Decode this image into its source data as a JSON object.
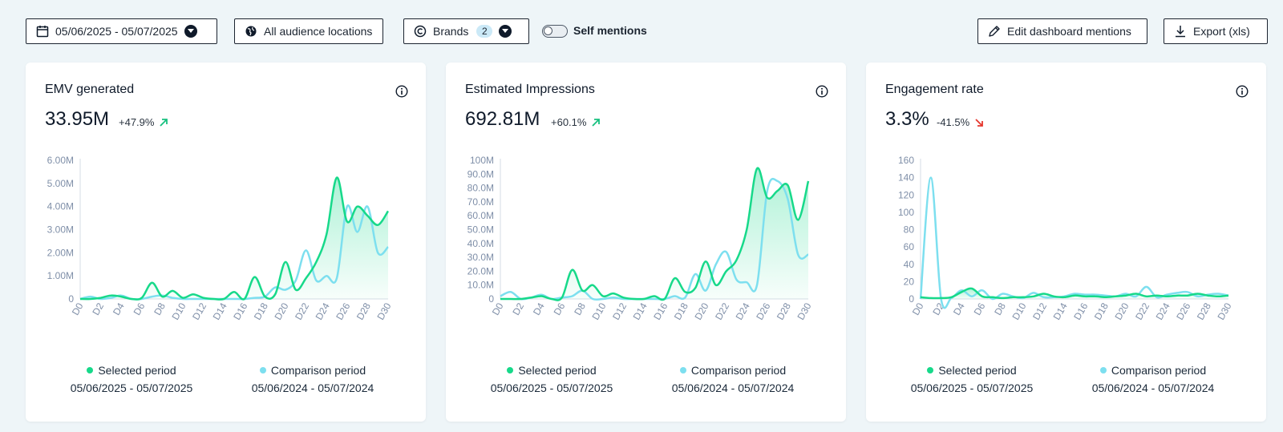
{
  "toolbar": {
    "date_range": "05/06/2025 - 05/07/2025",
    "locations": "All audience locations",
    "brands_label": "Brands",
    "brands_count": "2",
    "self_mentions": "Self mentions",
    "edit_mentions": "Edit dashboard mentions",
    "export": "Export (xls)"
  },
  "colors": {
    "selected": "#17d98a",
    "comparison": "#7ddfef",
    "up": "#17c07f",
    "down": "#e5372e"
  },
  "legend": {
    "selected_label": "Selected period",
    "selected_dates": "05/06/2025 - 05/07/2025",
    "comparison_label": "Comparison period",
    "comparison_dates": "05/06/2024 - 05/07/2024"
  },
  "cards": [
    {
      "title": "EMV generated",
      "value": "33.95M",
      "delta": "+47.9%",
      "trend": "up"
    },
    {
      "title": "Estimated Impressions",
      "value": "692.81M",
      "delta": "+60.1%",
      "trend": "up"
    },
    {
      "title": "Engagement rate",
      "value": "3.3%",
      "delta": "-41.5%",
      "trend": "down"
    }
  ],
  "chart_data": [
    {
      "type": "area",
      "x": [
        "D0",
        "D1",
        "D2",
        "D3",
        "D4",
        "D5",
        "D6",
        "D7",
        "D8",
        "D9",
        "D10",
        "D11",
        "D12",
        "D13",
        "D14",
        "D15",
        "D16",
        "D17",
        "D18",
        "D19",
        "D20",
        "D21",
        "D22",
        "D23",
        "D24",
        "D25",
        "D26",
        "D27",
        "D28",
        "D29",
        "D30"
      ],
      "xticks": [
        "D0",
        "D2",
        "D4",
        "D6",
        "D8",
        "D10",
        "D12",
        "D14",
        "D16",
        "D18",
        "D20",
        "D22",
        "D24",
        "D26",
        "D28",
        "D30"
      ],
      "yticks": [
        "0",
        "1.00M",
        "2.00M",
        "3.00M",
        "4.00M",
        "5.00M",
        "6.00M"
      ],
      "ylim": [
        0,
        6
      ],
      "series": [
        {
          "name": "Selected period",
          "values": [
            0,
            0,
            0.05,
            0.15,
            0.1,
            0,
            0.05,
            0.7,
            0.1,
            0.35,
            0.05,
            0.2,
            0.05,
            0,
            0,
            0.3,
            0,
            0.95,
            0.1,
            0.2,
            1.6,
            0.4,
            0.9,
            1.6,
            2.8,
            5.25,
            3.35,
            4.0,
            3.6,
            3.2,
            3.8
          ]
        },
        {
          "name": "Comparison period",
          "values": [
            0,
            0.1,
            0,
            0.05,
            0.15,
            0,
            0,
            0.1,
            0.15,
            0.05,
            0,
            0,
            0,
            0,
            0,
            0,
            0,
            0.05,
            0.1,
            0.5,
            0.4,
            0.8,
            2.1,
            0.8,
            1.0,
            0.9,
            4.0,
            2.9,
            4.0,
            2.0,
            2.25
          ]
        }
      ]
    },
    {
      "type": "area",
      "x": [
        "D0",
        "D1",
        "D2",
        "D3",
        "D4",
        "D5",
        "D6",
        "D7",
        "D8",
        "D9",
        "D10",
        "D11",
        "D12",
        "D13",
        "D14",
        "D15",
        "D16",
        "D17",
        "D18",
        "D19",
        "D20",
        "D21",
        "D22",
        "D23",
        "D24",
        "D25",
        "D26",
        "D27",
        "D28",
        "D29",
        "D30"
      ],
      "xticks": [
        "D0",
        "D2",
        "D4",
        "D6",
        "D8",
        "D10",
        "D12",
        "D14",
        "D16",
        "D18",
        "D20",
        "D22",
        "D24",
        "D26",
        "D28",
        "D30"
      ],
      "yticks": [
        "0",
        "10.0M",
        "20.0M",
        "30.0M",
        "40.0M",
        "50.0M",
        "60.0M",
        "70.0M",
        "80.0M",
        "90.0M",
        "100M"
      ],
      "ylim": [
        0,
        100
      ],
      "series": [
        {
          "name": "Selected period",
          "values": [
            0,
            0,
            0,
            1,
            2,
            0,
            1,
            21,
            6,
            10,
            2,
            4,
            1,
            0,
            0,
            2,
            0,
            15,
            5,
            8,
            27,
            10,
            20,
            28,
            50,
            94,
            73,
            78,
            82,
            57,
            85
          ]
        },
        {
          "name": "Comparison period",
          "values": [
            2,
            5,
            0,
            1,
            3,
            0,
            1,
            2,
            6,
            0,
            0,
            1,
            0,
            0,
            0,
            0,
            0,
            2,
            1,
            18,
            6,
            25,
            34,
            14,
            12,
            10,
            78,
            85,
            72,
            32,
            32
          ]
        }
      ]
    },
    {
      "type": "area",
      "x": [
        "D0",
        "D1",
        "D2",
        "D3",
        "D4",
        "D5",
        "D6",
        "D7",
        "D8",
        "D9",
        "D10",
        "D11",
        "D12",
        "D13",
        "D14",
        "D15",
        "D16",
        "D17",
        "D18",
        "D19",
        "D20",
        "D21",
        "D22",
        "D23",
        "D24",
        "D25",
        "D26",
        "D27",
        "D28",
        "D29",
        "D30"
      ],
      "xticks": [
        "D0",
        "D2",
        "D4",
        "D6",
        "D8",
        "D10",
        "D12",
        "D14",
        "D16",
        "D18",
        "D20",
        "D22",
        "D24",
        "D26",
        "D28",
        "D30"
      ],
      "yticks": [
        "0",
        "20",
        "40",
        "60",
        "80",
        "100",
        "120",
        "140",
        "160"
      ],
      "ylim": [
        0,
        160
      ],
      "series": [
        {
          "name": "Selected period",
          "values": [
            2,
            1,
            1,
            2,
            8,
            12,
            3,
            2,
            1,
            2,
            2,
            3,
            6,
            3,
            2,
            4,
            3,
            3,
            2,
            3,
            4,
            6,
            3,
            4,
            3,
            4,
            4,
            6,
            4,
            3,
            4
          ]
        },
        {
          "name": "Comparison period",
          "values": [
            0,
            140,
            0,
            1,
            10,
            3,
            10,
            0,
            6,
            3,
            1,
            7,
            2,
            2,
            3,
            6,
            5,
            5,
            4,
            3,
            6,
            3,
            14,
            2,
            5,
            7,
            8,
            3,
            5,
            6,
            4
          ]
        }
      ]
    }
  ]
}
